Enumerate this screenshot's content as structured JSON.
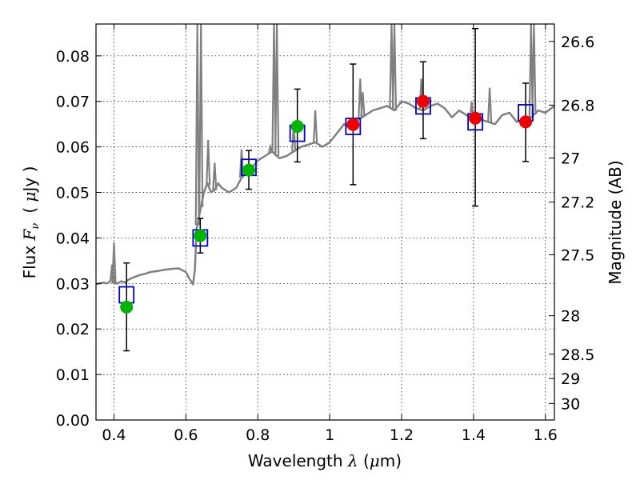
{
  "chart_data": {
    "type": "scatter",
    "title": "",
    "xlabel": {
      "prefix": "Wavelength ",
      "sym": "λ",
      "unit_open": " (",
      "unit_mu": "μ",
      "unit_close": "m)"
    },
    "ylabel": {
      "prefix": "Flux ",
      "sym": "F",
      "sub": "ν",
      "unit_open": "( ",
      "unit_mu": "μ",
      "unit_close": "Jy )"
    },
    "y2label": "Magnitude (AB)",
    "xlim": [
      0.35,
      1.625
    ],
    "ylim": [
      0.0,
      0.087
    ],
    "xticks": [
      0.4,
      0.6,
      0.8,
      1.0,
      1.2,
      1.4,
      1.6
    ],
    "xtick_labels": [
      "0.4",
      "0.6",
      "0.8",
      "1",
      "1.2",
      "1.4",
      "1.6"
    ],
    "yticks": [
      0.0,
      0.01,
      0.02,
      0.03,
      0.04,
      0.05,
      0.06,
      0.07,
      0.08
    ],
    "ytick_labels": [
      "0.00",
      "0.01",
      "0.02",
      "0.03",
      "0.04",
      "0.05",
      "0.06",
      "0.07",
      "0.08"
    ],
    "y2ticks": [
      "26.6",
      "26.8",
      "27",
      "27.2",
      "27.5",
      "28",
      "28.5",
      "29",
      "30"
    ],
    "grid": true,
    "colors": {
      "spectrum": "#808080",
      "model": "#0000cc",
      "green": "#00b400",
      "red": "#ee0000",
      "error": "#000000"
    },
    "spectrum": {
      "x": [
        0.35,
        0.36,
        0.37,
        0.38,
        0.39,
        0.395,
        0.4,
        0.41,
        0.42,
        0.43,
        0.44,
        0.45,
        0.46,
        0.47,
        0.48,
        0.49,
        0.5,
        0.52,
        0.54,
        0.56,
        0.58,
        0.6,
        0.61,
        0.62,
        0.625,
        0.63,
        0.64,
        0.65,
        0.66,
        0.67,
        0.68,
        0.69,
        0.7,
        0.72,
        0.74,
        0.76,
        0.78,
        0.8,
        0.82,
        0.84,
        0.86,
        0.88,
        0.9,
        0.92,
        0.94,
        0.96,
        0.98,
        1.0,
        1.02,
        1.04,
        1.06,
        1.08,
        1.1,
        1.12,
        1.14,
        1.16,
        1.18,
        1.2,
        1.22,
        1.24,
        1.26,
        1.28,
        1.3,
        1.32,
        1.34,
        1.36,
        1.38,
        1.4,
        1.42,
        1.44,
        1.46,
        1.48,
        1.5,
        1.52,
        1.54,
        1.56,
        1.58,
        1.6,
        1.625
      ],
      "y": [
        0.0298,
        0.03,
        0.0302,
        0.03,
        0.0305,
        0.034,
        0.03,
        0.03,
        0.0305,
        0.0302,
        0.0308,
        0.0312,
        0.0315,
        0.0318,
        0.032,
        0.0322,
        0.0325,
        0.0327,
        0.033,
        0.0332,
        0.0333,
        0.0325,
        0.031,
        0.0298,
        0.033,
        0.042,
        0.046,
        0.05,
        0.052,
        0.05,
        0.0505,
        0.052,
        0.051,
        0.05,
        0.051,
        0.054,
        0.055,
        0.057,
        0.058,
        0.059,
        0.0575,
        0.058,
        0.059,
        0.06,
        0.0605,
        0.061,
        0.06,
        0.061,
        0.063,
        0.065,
        0.064,
        0.066,
        0.067,
        0.068,
        0.0685,
        0.069,
        0.068,
        0.07,
        0.0695,
        0.0685,
        0.068,
        0.069,
        0.0695,
        0.0685,
        0.0665,
        0.068,
        0.067,
        0.066,
        0.066,
        0.0655,
        0.065,
        0.067,
        0.0675,
        0.0655,
        0.066,
        0.0665,
        0.068,
        0.0675,
        0.069
      ]
    },
    "spectrum_lines": [
      {
        "x": 0.4,
        "y": 0.039
      },
      {
        "x": 0.632,
        "y": 0.087
      },
      {
        "x": 0.642,
        "y": 0.087
      },
      {
        "x": 0.662,
        "y": 0.0615
      },
      {
        "x": 0.68,
        "y": 0.0565
      },
      {
        "x": 0.755,
        "y": 0.0595
      },
      {
        "x": 0.835,
        "y": 0.06
      },
      {
        "x": 0.845,
        "y": 0.087
      },
      {
        "x": 0.853,
        "y": 0.087
      },
      {
        "x": 0.9,
        "y": 0.065
      },
      {
        "x": 0.96,
        "y": 0.068
      },
      {
        "x": 1.085,
        "y": 0.075
      },
      {
        "x": 1.092,
        "y": 0.072
      },
      {
        "x": 1.172,
        "y": 0.087
      },
      {
        "x": 1.18,
        "y": 0.087
      },
      {
        "x": 1.255,
        "y": 0.075
      },
      {
        "x": 1.395,
        "y": 0.07
      },
      {
        "x": 1.445,
        "y": 0.073
      },
      {
        "x": 1.56,
        "y": 0.087
      },
      {
        "x": 1.568,
        "y": 0.087
      }
    ],
    "model_points": [
      {
        "x": 0.435,
        "y": 0.0275
      },
      {
        "x": 0.64,
        "y": 0.04
      },
      {
        "x": 0.775,
        "y": 0.0555
      },
      {
        "x": 0.91,
        "y": 0.063
      },
      {
        "x": 1.065,
        "y": 0.0645
      },
      {
        "x": 1.26,
        "y": 0.069
      },
      {
        "x": 1.405,
        "y": 0.0655
      },
      {
        "x": 1.545,
        "y": 0.0675
      }
    ],
    "observed_points": [
      {
        "x": 0.435,
        "y": 0.0248,
        "yerr_low": 0.0152,
        "yerr_high": 0.0345,
        "color": "green"
      },
      {
        "x": 0.64,
        "y": 0.0405,
        "yerr_low": 0.0367,
        "yerr_high": 0.0443,
        "color": "green"
      },
      {
        "x": 0.775,
        "y": 0.0549,
        "yerr_low": 0.0507,
        "yerr_high": 0.0592,
        "color": "green"
      },
      {
        "x": 0.91,
        "y": 0.0645,
        "yerr_low": 0.0567,
        "yerr_high": 0.0727,
        "color": "green"
      },
      {
        "x": 1.065,
        "y": 0.0649,
        "yerr_low": 0.0517,
        "yerr_high": 0.0782,
        "color": "red"
      },
      {
        "x": 1.26,
        "y": 0.07,
        "yerr_low": 0.0618,
        "yerr_high": 0.0787,
        "color": "red"
      },
      {
        "x": 1.405,
        "y": 0.0663,
        "yerr_low": 0.047,
        "yerr_high": 0.086,
        "color": "red"
      },
      {
        "x": 1.545,
        "y": 0.0655,
        "yerr_low": 0.0568,
        "yerr_high": 0.074,
        "color": "red"
      }
    ]
  }
}
